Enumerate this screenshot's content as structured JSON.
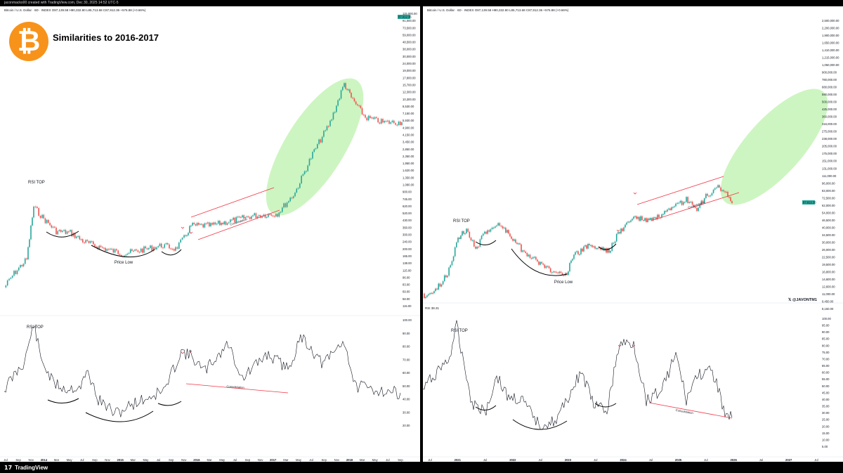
{
  "header": {
    "text": "jaconmacko00 created with TradingView.com, Dec 30, 2025 14:52 UTC-5"
  },
  "footer": {
    "logo_text": "TradingView",
    "logo_icon": "tradingview-logo-icon"
  },
  "overlay": {
    "title": "Similarities to 2016-2017",
    "badge_icon": "bitcoin-logo-icon",
    "watermark": "@JAVONTM1"
  },
  "chart_data": [
    {
      "type": "line",
      "title": "Similarities to 2016-2017",
      "legend_text": "Bitcoin / U.S. Dollar · 6D · INDEX  O87,139.58 H90,332.80 L85,713.68 C87,912.36 +576.88 (+0.66%)",
      "price_scale": "log",
      "price_ticks": [
        115000,
        91000,
        73500,
        59000,
        48500,
        38000,
        30000,
        24000,
        19000,
        17800,
        15700,
        12300,
        10300,
        8530,
        7150,
        5930,
        4900,
        4150,
        3450,
        2850,
        2350,
        1950,
        1620,
        1350,
        1080,
        900,
        745,
        620,
        520,
        430,
        360,
        300,
        240,
        200,
        165,
        138,
        115,
        96,
        83,
        69,
        58,
        115
      ],
      "price_tick_labels": [
        "115,000.00",
        "91,000.00",
        "73,500.00",
        "59,000.00",
        "48,500.00",
        "38,000.00",
        "30,000.00",
        "24,000.00",
        "19,000.00",
        "17,800.00",
        "15,700.00",
        "12,300.00",
        "10,300.00",
        "8,530.00",
        "7,150.00",
        "5,930.00",
        "4,900.00",
        "4,150.00",
        "3,450.00",
        "2,850.00",
        "2,350.00",
        "1,950.00",
        "1,620.00",
        "1,350.00",
        "1,080.00",
        "900.00",
        "745.00",
        "620.00",
        "520.00",
        "430.00",
        "360.00",
        "300.00",
        "240.00",
        "200.00",
        "165.00",
        "138.00",
        "115.00",
        "96.00",
        "83.00",
        "69.00",
        "58.00",
        "115.00"
      ],
      "last_price_label": "87,912.36",
      "rsi_ticks": [
        "100.00",
        "90.00",
        "80.00",
        "70.00",
        "60.00",
        "50.00",
        "40.00",
        "30.00",
        "20.00"
      ],
      "time_labels": [
        "Jul",
        "Sep",
        "Nov",
        "2014",
        "Mar",
        "May",
        "Jul",
        "Sep",
        "Nov",
        "2015",
        "Mar",
        "May",
        "Jul",
        "Sep",
        "Nov",
        "2016",
        "Mar",
        "May",
        "Jul",
        "Sep",
        "Nov",
        "2017",
        "Mar",
        "May",
        "Jul",
        "Sep",
        "Nov",
        "2018",
        "Mar",
        "May",
        "Jul",
        "Sep"
      ],
      "annotations": {
        "rsi_top": "RSI TOP",
        "price_low": "Price Low",
        "consolidation": "Consolidation",
        "rsi_top_lower": "RSI TOP"
      },
      "colors": {
        "up": "#26a69a",
        "down": "#ef5350",
        "channel": "#f23645",
        "zone": "#b2f0a0",
        "arc": "#000000",
        "rsi": "#131722"
      }
    },
    {
      "type": "line",
      "legend_text": "Bitcoin / U.S. Dollar · 6D · INDEX  O87,139.58 H90,332.80 L85,713.68 C87,912.36 +576.88 (+0.66%)",
      "rsi_legend": "RSI  38.31",
      "price_scale": "log",
      "price_tick_labels": [
        "2,500,000.00",
        "2,200,000.00",
        "1,900,000.00",
        "1,650,000.00",
        "1,410,000.00",
        "1,215,000.00",
        "1,050,000.00",
        "900,000.00",
        "780,000.00",
        "680,000.00",
        "590,000.00",
        "500,000.00",
        "425,000.00",
        "360,000.00",
        "316,000.00",
        "275,000.00",
        "238,000.00",
        "205,000.00",
        "175,000.00",
        "151,000.00",
        "131,000.00",
        "111,000.00",
        "96,000.00",
        "83,000.00",
        "72,500.00",
        "62,000.00",
        "54,000.00",
        "46,500.00",
        "40,000.00",
        "34,500.00",
        "30,000.00",
        "26,000.00",
        "22,500.00",
        "19,500.00",
        "16,800.00",
        "14,600.00",
        "12,600.00",
        "11,000.00",
        "9,450.00",
        "8,150.00"
      ],
      "last_price_label": "87,912.36",
      "rsi_ticks": [
        "100.00",
        "95.00",
        "90.00",
        "85.00",
        "80.00",
        "75.00",
        "70.00",
        "65.00",
        "60.00",
        "55.00",
        "50.00",
        "45.00",
        "40.00",
        "35.00",
        "30.00",
        "25.00",
        "20.00",
        "15.00",
        "10.00",
        "5.00"
      ],
      "time_labels": [
        "Jul",
        "2021",
        "Jul",
        "2022",
        "Jul",
        "2023",
        "Jul",
        "2024",
        "Jul",
        "2025",
        "Jul",
        "2026",
        "Jul",
        "2027",
        "Jul"
      ],
      "annotations": {
        "rsi_top": "RSI TOP",
        "price_low": "Price Low",
        "consolidation": "Consolidation",
        "rsi_top_lower": "RSI TOP"
      },
      "colors": {
        "up": "#26a69a",
        "down": "#ef5350",
        "channel": "#f23645",
        "zone": "#b2f0a0",
        "arc": "#000000",
        "rsi": "#131722"
      }
    }
  ]
}
